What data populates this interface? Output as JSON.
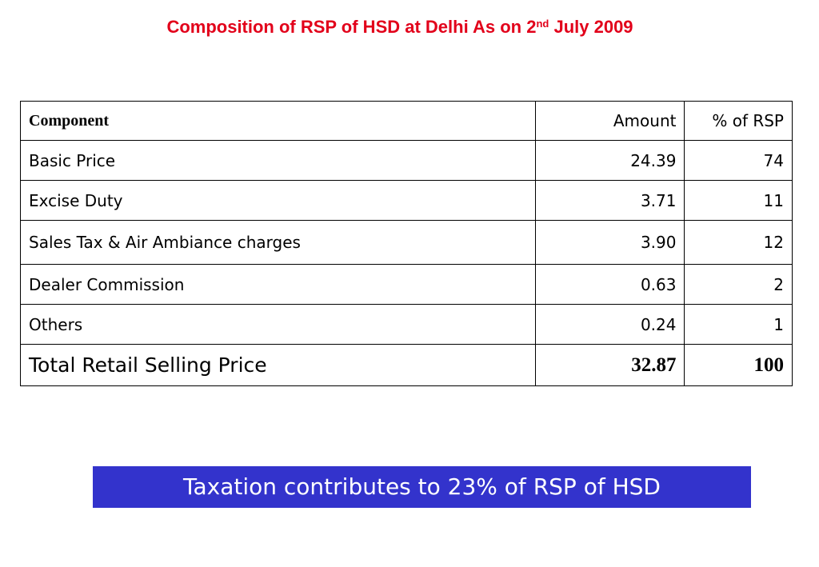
{
  "title": {
    "text_main": "Composition of RSP of HSD at Delhi As on 2",
    "superscript": "nd",
    "text_tail": " July 2009"
  },
  "table": {
    "headers": {
      "component": "Component",
      "amount": "Amount",
      "percent": "% of RSP"
    },
    "rows": [
      {
        "component": "Basic Price",
        "amount": "24.39",
        "percent": "74"
      },
      {
        "component": "Excise Duty",
        "amount": "3.71",
        "percent": "11"
      },
      {
        "component": "Sales Tax & Air Ambiance charges",
        "amount": "3.90",
        "percent": "12"
      },
      {
        "component": "Dealer Commission",
        "amount": "0.63",
        "percent": "2"
      },
      {
        "component": "Others",
        "amount": "0.24",
        "percent": "1"
      }
    ],
    "total": {
      "component": "Total Retail Selling Price",
      "amount": "32.87",
      "percent": "100"
    }
  },
  "banner": {
    "text": "Taxation contributes to 23% of RSP of HSD"
  },
  "colors": {
    "title": "#e2001a",
    "banner_bg": "#3333cc",
    "banner_text": "#ffffff"
  }
}
